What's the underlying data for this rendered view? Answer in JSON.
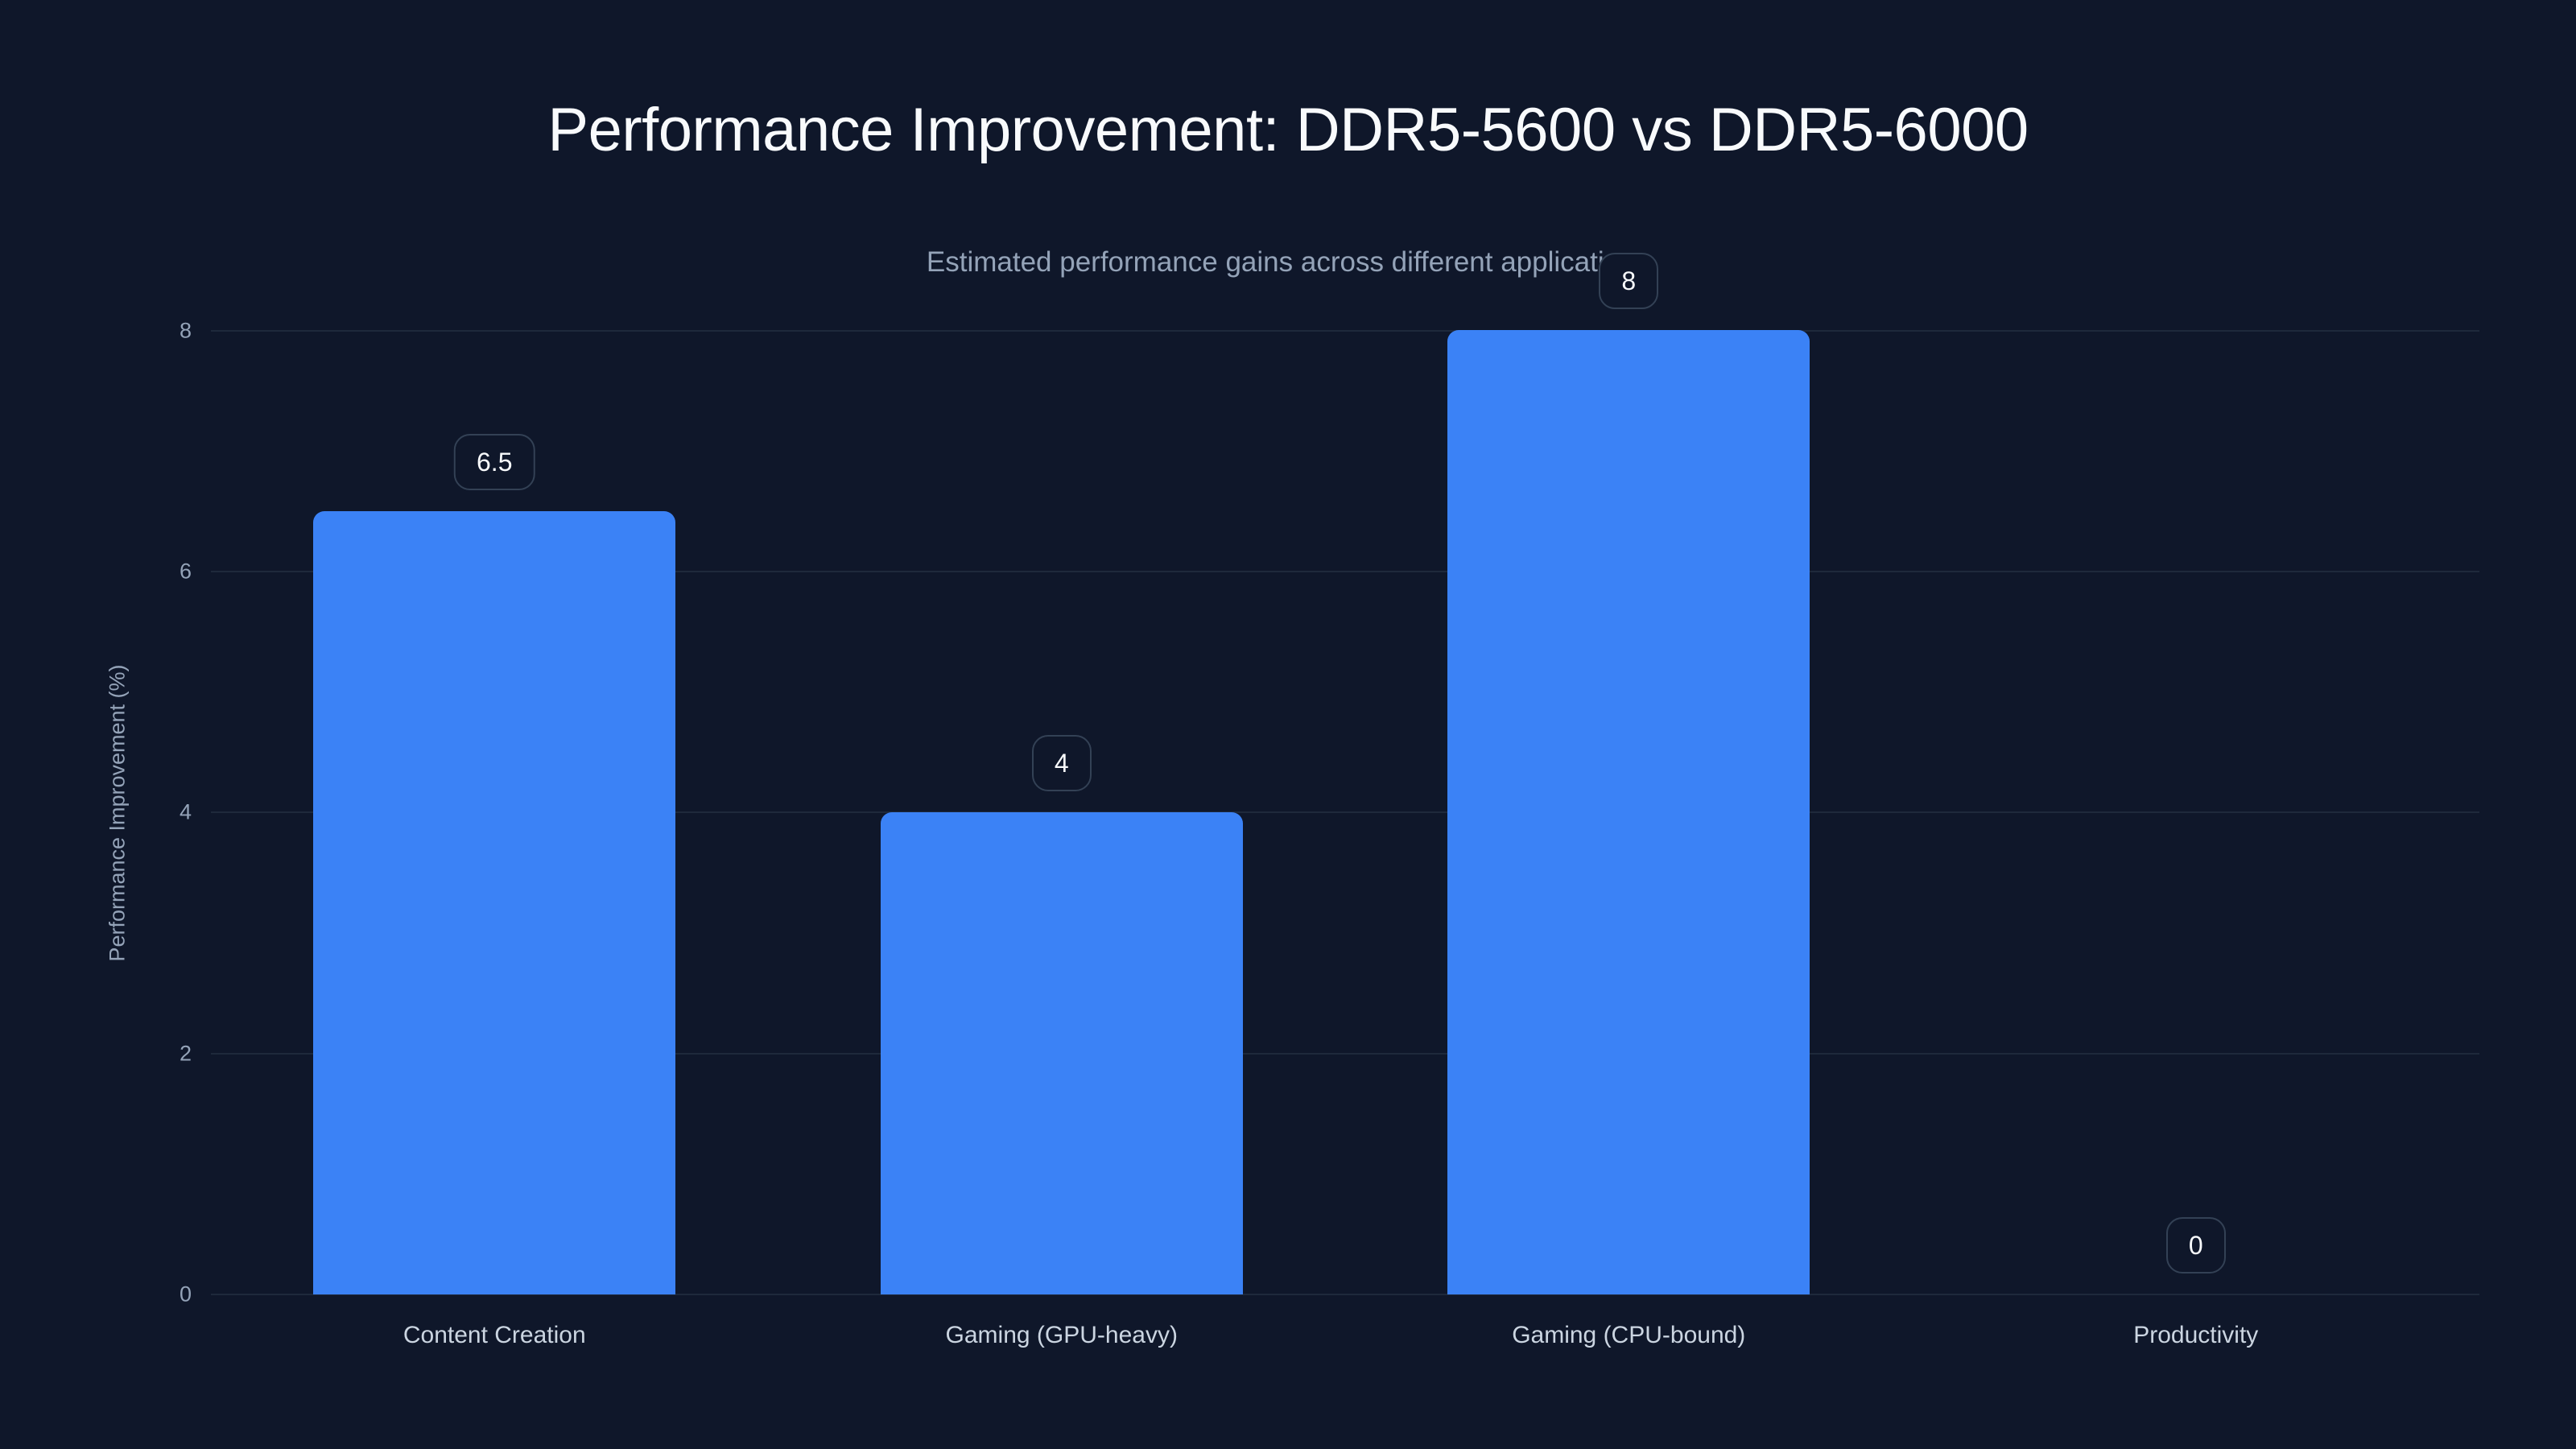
{
  "chart": {
    "title": "Performance Improvement: DDR5-5600 vs DDR5-6000",
    "subtitle": "Estimated performance gains across different applications",
    "ylabel": "Performance Improvement (%)",
    "yticks": [
      "0",
      "2",
      "4",
      "6",
      "8"
    ],
    "bar_color": "#3b82f6",
    "bars": [
      {
        "category": "Content Creation",
        "value": 6.5,
        "label": "6.5"
      },
      {
        "category": "Gaming (GPU-heavy)",
        "value": 4,
        "label": "4"
      },
      {
        "category": "Gaming (CPU-bound)",
        "value": 8,
        "label": "8"
      },
      {
        "category": "Productivity",
        "value": 0,
        "label": "0"
      }
    ]
  },
  "chart_data": {
    "type": "bar",
    "title": "Performance Improvement: DDR5-5600 vs DDR5-6000",
    "subtitle": "Estimated performance gains across different applications",
    "categories": [
      "Content Creation",
      "Gaming (GPU-heavy)",
      "Gaming (CPU-bound)",
      "Productivity"
    ],
    "values": [
      6.5,
      4,
      8,
      0
    ],
    "xlabel": "",
    "ylabel": "Performance Improvement (%)",
    "ylim": [
      0,
      8
    ],
    "yticks": [
      0,
      2,
      4,
      6,
      8
    ],
    "grid": true,
    "legend": null,
    "data_labels": true
  }
}
